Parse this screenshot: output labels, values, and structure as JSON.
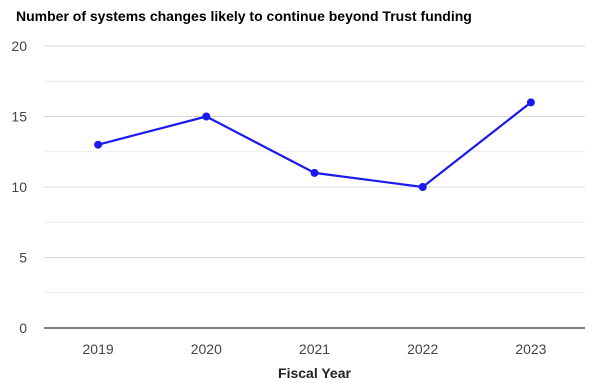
{
  "chart_data": {
    "type": "line",
    "title": "Number of systems changes likely to continue beyond Trust funding",
    "xlabel": "Fiscal Year",
    "ylabel": "",
    "categories": [
      "2019",
      "2020",
      "2021",
      "2022",
      "2023"
    ],
    "series": [
      {
        "values": [
          13,
          15,
          11,
          10,
          16
        ]
      }
    ],
    "ylim": [
      0,
      20
    ],
    "yticks": [
      0,
      5,
      10,
      15,
      20
    ],
    "grid": true,
    "legend": "none",
    "colors": {
      "line": "#1a1aee",
      "major_grid": "#d9d9d9",
      "minor_grid": "#ececec",
      "axis": "#333333"
    }
  }
}
